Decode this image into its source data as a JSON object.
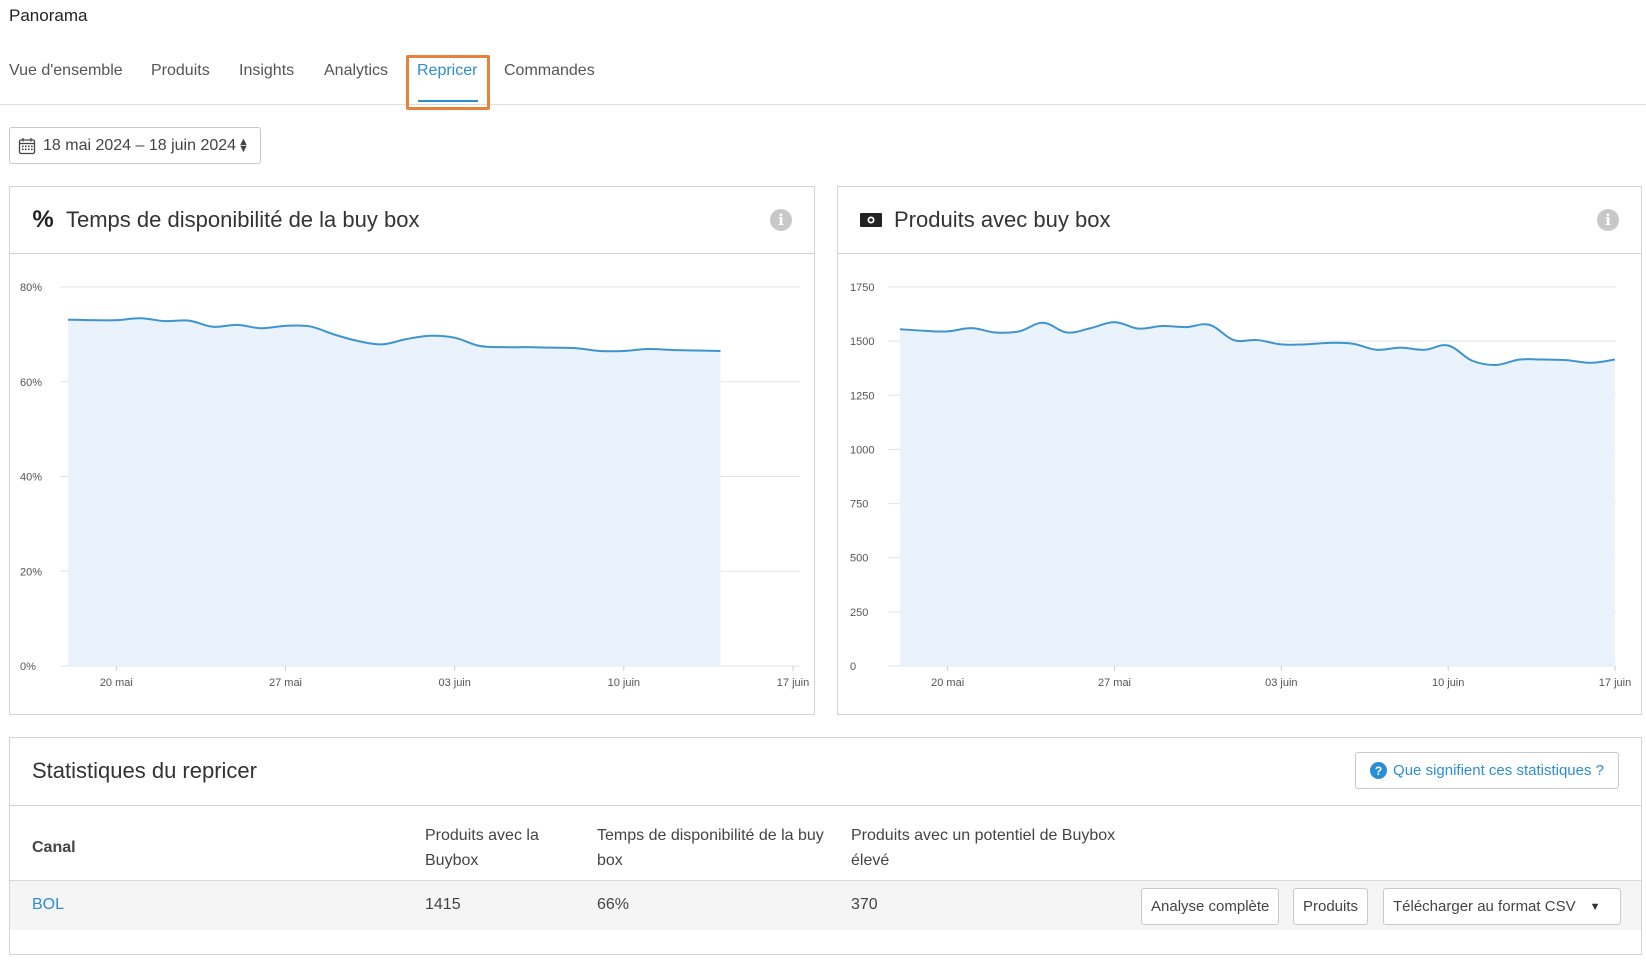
{
  "app": {
    "title": "Panorama"
  },
  "tabs": [
    {
      "label": "Vue d'ensemble",
      "active": false
    },
    {
      "label": "Produits",
      "active": false
    },
    {
      "label": "Insights",
      "active": false
    },
    {
      "label": "Analytics",
      "active": false
    },
    {
      "label": "Repricer",
      "active": true
    },
    {
      "label": "Commandes",
      "active": false
    }
  ],
  "date_range": {
    "label": "18 mai 2024 – 18 juin 2024",
    "icon": "calendar-icon"
  },
  "panels": {
    "availability": {
      "title": "Temps de disponibilité de la buy box",
      "icon": "percent-icon",
      "info_icon": "i"
    },
    "products": {
      "title": "Produits avec buy box",
      "icon": "money-icon",
      "info_icon": "i"
    }
  },
  "colors": {
    "accent": "#2b8ed4",
    "line": "#3e95cd",
    "fill": "#eaf3fc",
    "highlight": "#e8823a"
  },
  "chart_data": [
    {
      "type": "area",
      "title": "Temps de disponibilité de la buy box",
      "x_ticks": [
        "20 mai",
        "27 mai",
        "03 juin",
        "10 juin",
        "17 juin"
      ],
      "y_ticks": [
        "0%",
        "20%",
        "40%",
        "60%",
        "80%"
      ],
      "ylim": [
        0,
        80
      ],
      "x": [
        0,
        1,
        2,
        3,
        4,
        5,
        6,
        7,
        8,
        9,
        10,
        11,
        12,
        13,
        14,
        15,
        16,
        17,
        18,
        19,
        20,
        21,
        22,
        23,
        24,
        25,
        26,
        27,
        28,
        29,
        30
      ],
      "values": [
        73.1,
        73.0,
        73.0,
        73.4,
        72.8,
        72.9,
        71.6,
        72.0,
        71.3,
        71.8,
        71.7,
        70.0,
        68.6,
        67.9,
        69.0,
        69.7,
        69.3,
        67.6,
        67.3,
        67.3,
        67.2,
        67.1,
        66.5,
        66.5,
        66.9,
        66.7,
        66.6,
        66.5,
        null,
        null,
        null
      ],
      "x_tick_positions": [
        2,
        9,
        16,
        23,
        30
      ]
    },
    {
      "type": "area",
      "title": "Produits avec buy box",
      "x_ticks": [
        "20 mai",
        "27 mai",
        "03 juin",
        "10 juin",
        "17 juin"
      ],
      "y_ticks": [
        "0",
        "250",
        "500",
        "750",
        "1000",
        "1250",
        "1500",
        "1750"
      ],
      "ylim": [
        0,
        1750
      ],
      "x": [
        0,
        1,
        2,
        3,
        4,
        5,
        6,
        7,
        8,
        9,
        10,
        11,
        12,
        13,
        14,
        15,
        16,
        17,
        18,
        19,
        20,
        21,
        22,
        23,
        24,
        25,
        26,
        27,
        28,
        29,
        30
      ],
      "values": [
        1555,
        1548,
        1545,
        1560,
        1540,
        1545,
        1585,
        1540,
        1560,
        1588,
        1558,
        1570,
        1565,
        1575,
        1505,
        1505,
        1485,
        1485,
        1492,
        1488,
        1460,
        1470,
        1460,
        1480,
        1410,
        1390,
        1415,
        1415,
        1412,
        1400,
        1415
      ],
      "x_tick_positions": [
        2,
        9,
        16,
        23,
        30
      ]
    }
  ],
  "stats": {
    "title": "Statistiques du repricer",
    "help_label": "Que signifient ces statistiques ?",
    "headers": {
      "canal": "Canal",
      "products_line1": "Produits avec la",
      "products_line2": "Buybox",
      "time_line1": "Temps de disponibilité de la buy",
      "time_line2": "box",
      "potential_line1": "Produits avec un potentiel de Buybox",
      "potential_line2": "élevé"
    },
    "rows": [
      {
        "canal": "BOL",
        "products": "1415",
        "time": "66%",
        "potential": "370"
      }
    ],
    "actions": {
      "analysis": "Analyse complète",
      "products": "Produits",
      "download": "Télécharger au format CSV"
    }
  }
}
